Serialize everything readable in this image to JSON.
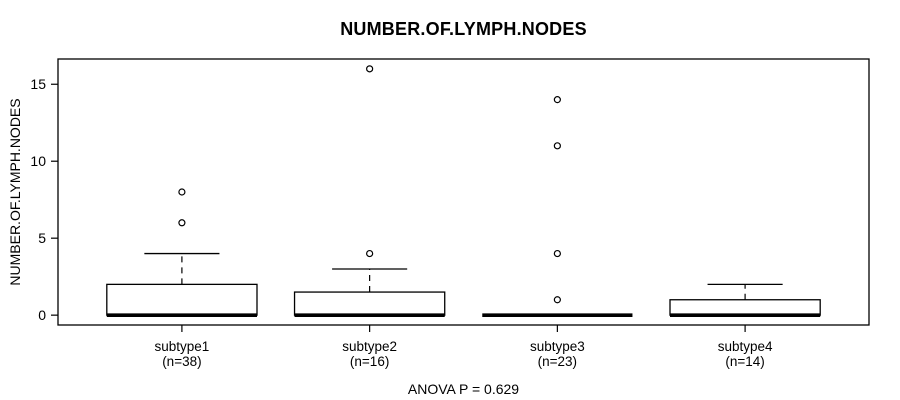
{
  "chart_data": {
    "type": "boxplot",
    "title": "NUMBER.OF.LYMPH.NODES",
    "ylabel": "NUMBER.OF.LYMPH.NODES",
    "xlabel": "",
    "annotation": "ANOVA P = 0.629",
    "ylim": [
      0,
      16
    ],
    "yticks": [
      "0",
      "5",
      "10",
      "15"
    ],
    "grid": false,
    "legend": "none",
    "categories": [
      "subtype1",
      "subtype2",
      "subtype3",
      "subtype4"
    ],
    "category_sublabels": [
      "(n=38)",
      "(n=16)",
      "(n=23)",
      "(n=14)"
    ],
    "series": [
      {
        "name": "subtype1",
        "n": 38,
        "whisker_low": 0,
        "q1": 0,
        "median": 0,
        "q3": 2,
        "whisker_high": 4,
        "outliers": [
          6,
          8
        ]
      },
      {
        "name": "subtype2",
        "n": 16,
        "whisker_low": 0,
        "q1": 0,
        "median": 0,
        "q3": 1.5,
        "whisker_high": 3,
        "outliers": [
          4,
          16
        ]
      },
      {
        "name": "subtype3",
        "n": 23,
        "whisker_low": 0,
        "q1": 0,
        "median": 0,
        "q3": 0,
        "whisker_high": 0,
        "outliers": [
          1,
          4,
          11,
          14
        ]
      },
      {
        "name": "subtype4",
        "n": 14,
        "whisker_low": 0,
        "q1": 0,
        "median": 0,
        "q3": 1,
        "whisker_high": 2,
        "outliers": []
      }
    ],
    "colors": {
      "stroke": "#000000",
      "box_fill": "#ffffff",
      "background": "#ffffff",
      "text": "#000000"
    }
  }
}
